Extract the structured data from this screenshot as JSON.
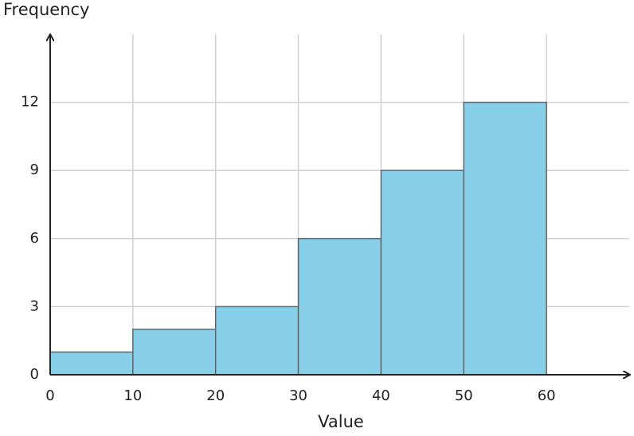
{
  "chart_data": {
    "type": "histogram",
    "y_label": "Frequency",
    "x_label": "Value",
    "bins": [
      0,
      10,
      20,
      30,
      40,
      50,
      60
    ],
    "values": [
      1,
      2,
      3,
      6,
      9,
      12
    ],
    "color": "#87cee8",
    "edge_color": "#666666",
    "xlim": [
      0,
      70
    ],
    "ylim": [
      0,
      15
    ],
    "xticks": [
      0,
      10,
      20,
      30,
      40,
      50,
      60
    ],
    "yticks": [
      0,
      3,
      6,
      9,
      12
    ],
    "grid": true
  }
}
